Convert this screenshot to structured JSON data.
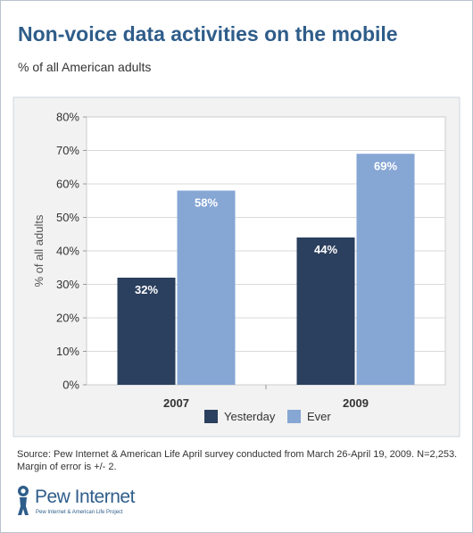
{
  "title": "Non-voice data activities on the mobile",
  "subtitle": "% of all American adults",
  "chart_data": {
    "type": "bar",
    "categories": [
      "2007",
      "2009"
    ],
    "series": [
      {
        "name": "Yesterday",
        "color": "#2b3f5e",
        "values": [
          32,
          44
        ]
      },
      {
        "name": "Ever",
        "color": "#86a6d4",
        "values": [
          58,
          69
        ]
      }
    ],
    "value_labels": [
      [
        "32%",
        "44%"
      ],
      [
        "58%",
        "69%"
      ]
    ],
    "ylabel": "% of all adults",
    "ylim": [
      0,
      80
    ],
    "yticks": [
      "0%",
      "10%",
      "20%",
      "30%",
      "40%",
      "50%",
      "60%",
      "70%",
      "80%"
    ],
    "grid": true,
    "legend_position": "bottom",
    "plot_background": "#ffffff",
    "panel_background": "#f2f2f2",
    "gridline_color": "#d9d9d9"
  },
  "source": {
    "line1": "Source: Pew Internet & American Life April survey conducted from March 26-April 19, 2009. N=2,253.",
    "line2": "Margin of error is +/- 2."
  },
  "logo": {
    "name": "Pew Internet",
    "tagline": "Pew Internet & American Life Project",
    "color": "#2f5d8a"
  }
}
